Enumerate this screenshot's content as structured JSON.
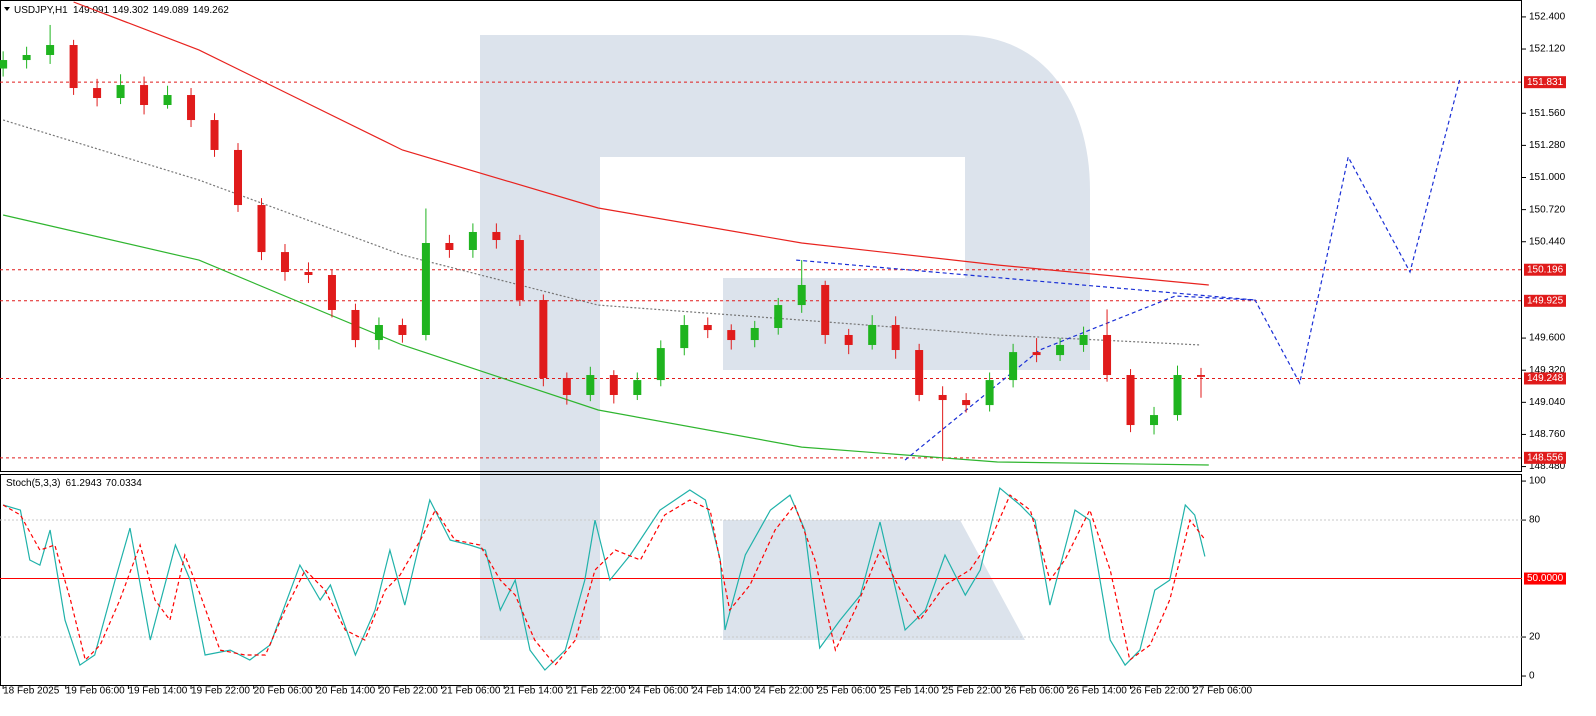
{
  "chart_data": [
    {
      "type": "candlestick",
      "title": "USDJPY,H1",
      "header_values": [
        149.091,
        149.302,
        149.089,
        149.262
      ],
      "x": [
        0,
        3,
        6,
        9,
        12,
        15,
        18,
        21,
        24,
        27,
        30,
        33,
        36,
        39,
        42,
        45,
        48,
        51,
        54,
        57,
        60,
        63,
        66,
        69,
        72,
        75,
        78,
        81,
        84,
        87,
        90,
        93,
        96,
        99,
        102,
        105,
        108,
        111,
        114,
        117,
        120,
        123,
        126,
        129,
        132,
        135,
        138,
        141,
        144,
        147,
        150,
        153
      ],
      "open": [
        151.95,
        152.024,
        152.068,
        152.155,
        151.78,
        151.693,
        151.806,
        151.632,
        151.719,
        151.501,
        151.24,
        150.76,
        150.35,
        150.176,
        150.15,
        149.845,
        149.583,
        149.714,
        149.627,
        150.429,
        150.368,
        150.525,
        150.455,
        149.932,
        149.252,
        149.104,
        149.278,
        149.104,
        149.234,
        149.513,
        149.714,
        149.67,
        149.583,
        149.688,
        149.888,
        150.063,
        149.627,
        149.54,
        149.714,
        149.496,
        149.104,
        149.06,
        149.016,
        149.234,
        149.478,
        149.452,
        149.54,
        149.627,
        149.278,
        148.842,
        148.929,
        149.278
      ],
      "high": [
        152.1,
        152.14,
        152.33,
        152.2,
        151.86,
        151.9,
        151.88,
        151.8,
        151.78,
        151.56,
        151.3,
        150.82,
        150.42,
        150.26,
        150.2,
        149.9,
        149.78,
        149.77,
        150.73,
        150.5,
        150.6,
        150.6,
        150.5,
        149.98,
        149.3,
        149.35,
        149.32,
        149.3,
        149.58,
        149.8,
        149.78,
        149.72,
        149.75,
        149.95,
        150.28,
        150.1,
        149.68,
        149.8,
        149.79,
        149.55,
        149.18,
        149.12,
        149.3,
        149.55,
        149.6,
        149.6,
        149.7,
        149.85,
        149.33,
        149.0,
        149.36,
        149.34
      ],
      "low": [
        151.88,
        151.95,
        151.99,
        151.72,
        151.62,
        151.64,
        151.55,
        151.6,
        151.44,
        151.18,
        150.7,
        150.28,
        150.1,
        150.08,
        149.78,
        149.52,
        149.5,
        149.56,
        149.58,
        150.3,
        150.3,
        150.38,
        149.88,
        149.18,
        149.02,
        149.05,
        149.03,
        149.06,
        149.18,
        149.45,
        149.6,
        149.5,
        149.52,
        149.63,
        149.82,
        149.55,
        149.46,
        149.5,
        149.42,
        149.05,
        148.53,
        148.95,
        148.96,
        149.17,
        149.39,
        149.4,
        149.48,
        149.22,
        148.78,
        148.76,
        148.88,
        149.08
      ],
      "close": [
        152.024,
        152.068,
        152.155,
        151.78,
        151.693,
        151.806,
        151.632,
        151.719,
        151.501,
        151.24,
        150.76,
        150.35,
        150.176,
        150.15,
        149.845,
        149.583,
        149.714,
        149.627,
        150.429,
        150.368,
        150.525,
        150.455,
        149.932,
        149.252,
        149.104,
        149.278,
        149.104,
        149.234,
        149.513,
        149.714,
        149.67,
        149.583,
        149.688,
        149.888,
        150.063,
        149.627,
        149.54,
        149.714,
        149.496,
        149.104,
        149.06,
        149.016,
        149.234,
        149.478,
        149.452,
        149.54,
        149.627,
        149.278,
        148.842,
        148.929,
        149.278,
        149.262
      ],
      "up_color": "#1fb41f",
      "down_color": "#e01b1b",
      "xlim": [
        -0.4,
        194
      ],
      "ylim": [
        148.45,
        152.53
      ],
      "yticks": [
        {
          "value": 152.4,
          "label": "152.400"
        },
        {
          "value": 152.12,
          "label": "152.120"
        },
        {
          "value": 151.56,
          "label": "151.560"
        },
        {
          "value": 151.28,
          "label": "151.280"
        },
        {
          "value": 151.0,
          "label": "151.000"
        },
        {
          "value": 150.72,
          "label": "150.720"
        },
        {
          "value": 150.44,
          "label": "150.440"
        },
        {
          "value": 149.6,
          "label": "149.600"
        },
        {
          "value": 149.32,
          "label": "149.320"
        },
        {
          "value": 149.04,
          "label": "149.040"
        },
        {
          "value": 148.76,
          "label": "148.760"
        },
        {
          "value": 148.48,
          "label": "148.480"
        }
      ],
      "levels": [
        151.831,
        150.196,
        149.925,
        149.248,
        148.556
      ],
      "level_color": "#e01b1b",
      "lines": [
        {
          "color": "#e8231f",
          "style": "solid",
          "x": [
            9,
            25,
            51,
            76,
            102,
            127,
            154
          ],
          "values": [
            152.53,
            152.112,
            151.24,
            150.734,
            150.429,
            150.237,
            150.063
          ]
        },
        {
          "color": "#2fb52f",
          "style": "solid",
          "x": [
            0,
            25,
            51,
            76,
            102,
            127,
            154
          ],
          "values": [
            150.673,
            150.28,
            149.54,
            148.973,
            148.65,
            148.52,
            148.494
          ]
        },
        {
          "color": "#777777",
          "style": "dotted",
          "x": [
            0,
            25,
            51,
            76,
            102,
            127,
            153
          ],
          "values": [
            151.501,
            150.978,
            150.324,
            149.888,
            149.757,
            149.627,
            149.54
          ]
        },
        {
          "color": "#1a2fd6",
          "style": "dashed",
          "x": [
            101.3,
            159.9
          ],
          "values": [
            150.28,
            149.932
          ]
        },
        {
          "color": "#1a2fd6",
          "style": "dashed",
          "x": [
            115.2,
            132.4,
            149.7,
            159.9,
            165.6,
            171.8,
            179.7,
            186.1
          ],
          "values": [
            148.537,
            149.496,
            149.967,
            149.932,
            149.208,
            151.179,
            150.176,
            151.867
          ]
        }
      ]
    },
    {
      "type": "line",
      "title": "Stoch(5,3,3)",
      "header_values": [
        61.2943,
        70.0334
      ],
      "xlim": [
        -0.4,
        194
      ],
      "xticks": [
        {
          "value": 0,
          "label": "18 Feb 2025"
        },
        {
          "value": 8,
          "label": "19 Feb 06:00"
        },
        {
          "value": 16,
          "label": "19 Feb 14:00"
        },
        {
          "value": 24,
          "label": "19 Feb 22:00"
        },
        {
          "value": 32,
          "label": "20 Feb 06:00"
        },
        {
          "value": 40,
          "label": "20 Feb 14:00"
        },
        {
          "value": 48,
          "label": "20 Feb 22:00"
        },
        {
          "value": 56,
          "label": "21 Feb 06:00"
        },
        {
          "value": 64,
          "label": "21 Feb 14:00"
        },
        {
          "value": 72,
          "label": "21 Feb 22:00"
        },
        {
          "value": 80,
          "label": "24 Feb 06:00"
        },
        {
          "value": 88,
          "label": "24 Feb 14:00"
        },
        {
          "value": 96,
          "label": "24 Feb 22:00"
        },
        {
          "value": 104,
          "label": "25 Feb 06:00"
        },
        {
          "value": 112,
          "label": "25 Feb 14:00"
        },
        {
          "value": 120,
          "label": "25 Feb 22:00"
        },
        {
          "value": 128,
          "label": "26 Feb 06:00"
        },
        {
          "value": 136,
          "label": "26 Feb 14:00"
        },
        {
          "value": 144,
          "label": "26 Feb 22:00"
        },
        {
          "value": 152,
          "label": "27 Feb 06:00"
        }
      ],
      "ylim": [
        -4.6,
        102.6
      ],
      "yticks": [
        0,
        20,
        80,
        100
      ],
      "levels": [
        20,
        80
      ],
      "level_color": "#c8c8c8",
      "signal_level": {
        "value": 50,
        "label": "50.0000"
      },
      "signal_level_color": "#ff0000",
      "lines": [
        {
          "color": "#20b2aa",
          "style": "solid",
          "x": [
            0,
            2.2,
            3.4,
            4.7,
            6.0,
            7.9,
            9.8,
            11.7,
            14.3,
            16.2,
            18.8,
            22.0,
            23.9,
            25.8,
            29.0,
            31.5,
            34.1,
            37.9,
            40.5,
            41.8,
            45.0,
            47.5,
            49.4,
            51.3,
            54.5,
            57.1,
            59.6,
            61.6,
            63.5,
            65.4,
            67.3,
            69.2,
            71.8,
            74.3,
            75.6,
            77.5,
            80.1,
            83.9,
            87.7,
            89.7,
            91.6,
            92.2,
            94.8,
            98.0,
            100.5,
            102.4,
            104.3,
            106.9,
            109.5,
            112.0,
            115.2,
            117.8,
            120.3,
            122.9,
            124.8,
            127.3,
            129.9,
            131.8,
            133.7,
            136.9,
            138.8,
            141.4,
            143.3,
            145.2,
            147.1,
            149.0,
            151.0,
            152.2,
            153.5
          ],
          "values": [
            87.7,
            85.1,
            59.5,
            56.9,
            74.9,
            28.7,
            5.6,
            10.8,
            49.2,
            75.9,
            18.5,
            67.2,
            49.2,
            10.8,
            13.3,
            8.2,
            15.9,
            56.9,
            39.0,
            46.7,
            10.8,
            33.8,
            64.6,
            36.4,
            90.3,
            69.7,
            67.2,
            64.6,
            33.8,
            49.2,
            13.3,
            3.1,
            13.3,
            49.2,
            80.0,
            49.2,
            62.1,
            85.1,
            95.4,
            90.3,
            59.5,
            23.6,
            62.1,
            85.1,
            92.8,
            74.9,
            14.4,
            28.7,
            41.5,
            79.0,
            23.6,
            33.8,
            62.1,
            41.5,
            54.4,
            96.4,
            87.7,
            80.0,
            36.4,
            85.1,
            80.0,
            18.5,
            5.6,
            13.3,
            44.1,
            49.2,
            87.7,
            82.6,
            61.29
          ]
        },
        {
          "color": "#ff0000",
          "style": "dashed",
          "x": [
            0,
            2.2,
            4.7,
            6.6,
            8.6,
            10.5,
            12.4,
            14.9,
            17.5,
            19.4,
            21.3,
            23.2,
            25.2,
            27.7,
            30.9,
            33.5,
            36.0,
            38.6,
            41.1,
            43.7,
            46.2,
            48.8,
            50.7,
            53.3,
            55.2,
            57.7,
            60.9,
            63.5,
            65.4,
            67.9,
            70.5,
            73.1,
            75.6,
            78.2,
            81.4,
            84.5,
            87.7,
            90.3,
            92.8,
            95.4,
            98.6,
            101.1,
            103.7,
            106.3,
            108.8,
            112.0,
            114.6,
            117.1,
            120.3,
            123.5,
            126.1,
            128.6,
            131.2,
            133.7,
            135.6,
            138.8,
            141.4,
            143.9,
            146.5,
            149.0,
            151.6,
            153.5
          ],
          "values": [
            87.7,
            82.6,
            64.6,
            67.2,
            39.0,
            8.2,
            15.9,
            39.0,
            67.2,
            39.0,
            28.7,
            62.1,
            41.5,
            13.3,
            10.8,
            10.8,
            33.8,
            54.4,
            44.1,
            23.6,
            18.5,
            44.1,
            51.8,
            69.7,
            85.1,
            69.7,
            67.2,
            49.2,
            41.5,
            18.5,
            5.6,
            18.5,
            54.4,
            64.6,
            59.5,
            82.6,
            90.3,
            85.1,
            33.8,
            46.7,
            74.9,
            87.7,
            59.5,
            13.3,
            33.8,
            64.6,
            44.1,
            28.7,
            46.7,
            54.4,
            69.7,
            92.8,
            85.1,
            49.2,
            59.5,
            85.1,
            54.4,
            8.2,
            15.9,
            39.0,
            80.0,
            70.03
          ]
        }
      ]
    }
  ]
}
